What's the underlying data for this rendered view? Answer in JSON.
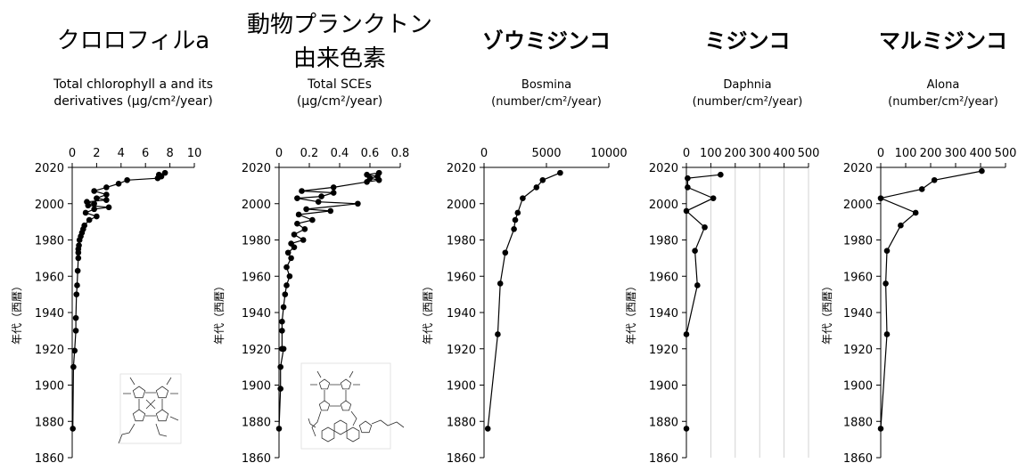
{
  "chart_data": [
    {
      "type": "line",
      "title": "クロロフィルa",
      "xlabel": "Total chlorophyll a and its derivatives (μg/cm²/year)",
      "xlabel_lines": [
        "Total chlorophyll  a and its",
        "derivatives  (μg/cm²/year)"
      ],
      "ylabel": "年代（西暦）",
      "xlim": [
        0,
        10
      ],
      "ylim": [
        1860,
        2020
      ],
      "xticks": [
        0,
        2,
        4,
        6,
        8,
        10
      ],
      "xtick_labels": [
        "0",
        "2",
        "4",
        "6",
        "8",
        "10"
      ],
      "yticks": [
        1860,
        1880,
        1900,
        1920,
        1940,
        1960,
        1980,
        2000,
        2020
      ],
      "ytick_labels": [
        "1860",
        "1880",
        "1900",
        "1920",
        "1940",
        "1960",
        "1980",
        "2000",
        "2020"
      ],
      "grid": false,
      "inset_image": "chlorophyll-structure",
      "series": [
        {
          "x": [
            7.6,
            7.1,
            7.3,
            7.0,
            4.5,
            3.8,
            2.8,
            1.8,
            2.8,
            2.0,
            2.8,
            1.2,
            1.8,
            1.3,
            3.0,
            1.8,
            1.1,
            2.0,
            1.4,
            1.0,
            0.9,
            0.8,
            0.7,
            0.6,
            0.55,
            0.5,
            0.5,
            0.5,
            0.45,
            0.4,
            0.35,
            0.3,
            0.3,
            0.2,
            0.1,
            0.05
          ],
          "y": [
            2017,
            2016,
            2015,
            2014,
            2013,
            2011,
            2009,
            2007,
            2005,
            2003,
            2002,
            2001,
            2000,
            1999,
            1998,
            1997,
            1995,
            1993,
            1991,
            1988,
            1986,
            1984,
            1982,
            1980,
            1977,
            1975,
            1973,
            1970,
            1963,
            1955,
            1950,
            1937,
            1930,
            1919,
            1910,
            1876
          ]
        }
      ]
    },
    {
      "type": "line",
      "title": "動物プランクトン由来色素",
      "title_lines": [
        "動物プランクトン",
        "由来色素"
      ],
      "xlabel": "Total SCEs (μg/cm²/year)",
      "xlabel_lines": [
        "Total SCEs",
        "(μg/cm²/year)"
      ],
      "ylabel": "年代（西暦）",
      "xlim": [
        0,
        0.8
      ],
      "ylim": [
        1860,
        2020
      ],
      "xticks": [
        0,
        0.2,
        0.4,
        0.6,
        0.8
      ],
      "xtick_labels": [
        "0",
        "0.2",
        "0.4",
        "0.6",
        "0.8"
      ],
      "yticks": [
        1860,
        1880,
        1900,
        1920,
        1940,
        1960,
        1980,
        2000,
        2020
      ],
      "ytick_labels": [
        "1860",
        "1880",
        "1900",
        "1920",
        "1940",
        "1960",
        "1980",
        "2000",
        "2020"
      ],
      "grid": false,
      "inset_image": "steryl-chlorin-ester-structure",
      "series": [
        {
          "x": [
            0.66,
            0.58,
            0.65,
            0.6,
            0.66,
            0.58,
            0.36,
            0.15,
            0.36,
            0.28,
            0.12,
            0.26,
            0.52,
            0.18,
            0.34,
            0.13,
            0.22,
            0.12,
            0.17,
            0.1,
            0.16,
            0.08,
            0.1,
            0.06,
            0.08,
            0.05,
            0.07,
            0.05,
            0.04,
            0.03,
            0.02,
            0.02,
            0.02,
            0.03,
            0.01,
            0.01,
            0.0
          ],
          "y": [
            2017,
            2016,
            2015,
            2014,
            2013,
            2012,
            2009,
            2007,
            2006,
            2004,
            2003,
            2001,
            2000,
            1997,
            1996,
            1994,
            1991,
            1989,
            1986,
            1983,
            1980,
            1978,
            1976,
            1973,
            1970,
            1965,
            1960,
            1955,
            1950,
            1943,
            1935,
            1930,
            1920,
            1920,
            1910,
            1898,
            1876
          ]
        }
      ]
    },
    {
      "type": "line",
      "title": "ゾウミジンコ",
      "xlabel": "Bosmina (number/cm²/year)",
      "xlabel_lines": [
        "Bosmina",
        "(number/cm²/year)"
      ],
      "ylabel": "年代（西暦）",
      "xlim": [
        0,
        10000
      ],
      "ylim": [
        1860,
        2020
      ],
      "xticks": [
        0,
        5000,
        10000
      ],
      "xtick_labels": [
        "0",
        "5000",
        "10000"
      ],
      "yticks": [
        1860,
        1880,
        1900,
        1920,
        1940,
        1960,
        1980,
        2000,
        2020
      ],
      "ytick_labels": [
        "1860",
        "1880",
        "1900",
        "1920",
        "1940",
        "1960",
        "1980",
        "2000",
        "2020"
      ],
      "grid": false,
      "series": [
        {
          "x": [
            6100,
            4700,
            4200,
            3100,
            2700,
            2500,
            2400,
            1700,
            1300,
            1100,
            300
          ],
          "y": [
            2017,
            2013,
            2009,
            2003,
            1995,
            1991,
            1986,
            1973,
            1956,
            1928,
            1876
          ]
        }
      ]
    },
    {
      "type": "line",
      "title": "ミジンコ",
      "xlabel": "Daphnia (number/cm²/year)",
      "xlabel_lines": [
        "Daphnia",
        "(number/cm²/year)"
      ],
      "ylabel": "年代（西暦）",
      "xlim": [
        0,
        500
      ],
      "ylim": [
        1860,
        2020
      ],
      "xticks": [
        0,
        100,
        200,
        300,
        400,
        500
      ],
      "xtick_labels": [
        "0",
        "100",
        "200",
        "300",
        "400",
        "500"
      ],
      "yticks": [
        1860,
        1880,
        1900,
        1920,
        1940,
        1960,
        1980,
        2000,
        2020
      ],
      "ytick_labels": [
        "1860",
        "1880",
        "1900",
        "1920",
        "1940",
        "1960",
        "1980",
        "2000",
        "2020"
      ],
      "grid": true,
      "series": [
        {
          "x": [
            140,
            5,
            5,
            110,
            0,
            75,
            35,
            45,
            0
          ],
          "y": [
            2016,
            2014,
            2009,
            2003,
            1996,
            1987,
            1974,
            1955,
            1928
          ]
        }
      ],
      "extra_points": [
        {
          "x": 0,
          "y": 1876
        }
      ]
    },
    {
      "type": "line",
      "title": "マルミジンコ",
      "xlabel": "Alona (number/cm²/year)",
      "xlabel_lines": [
        "Alona",
        "(number/cm²/year)"
      ],
      "ylabel": "年代（西暦）",
      "xlim": [
        0,
        500
      ],
      "ylim": [
        1860,
        2020
      ],
      "xticks": [
        0,
        100,
        200,
        300,
        400,
        500
      ],
      "xtick_labels": [
        "0",
        "100",
        "200",
        "300",
        "400",
        "500"
      ],
      "yticks": [
        1860,
        1880,
        1900,
        1920,
        1940,
        1960,
        1980,
        2000,
        2020
      ],
      "ytick_labels": [
        "1860",
        "1880",
        "1900",
        "1920",
        "1940",
        "1960",
        "1980",
        "2000",
        "2020"
      ],
      "grid": false,
      "series": [
        {
          "x": [
            405,
            215,
            165,
            0,
            140,
            80,
            25,
            20,
            25,
            0
          ],
          "y": [
            2018,
            2013,
            2008,
            2003,
            1995,
            1988,
            1974,
            1956,
            1928,
            1876
          ]
        }
      ]
    }
  ]
}
